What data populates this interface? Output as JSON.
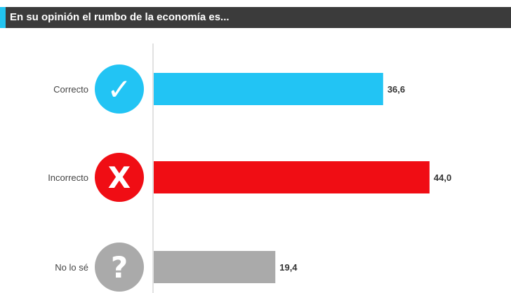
{
  "header": {
    "title": "En su opinión el rumbo de la economía es..."
  },
  "colors": {
    "header_bg": "#3b3b3b",
    "header_accent": "#22c4f0",
    "axis_line": "#d9d9d9"
  },
  "chart_data": {
    "type": "bar",
    "orientation": "horizontal",
    "title": "En su opinión el rumbo de la economía es...",
    "categories": [
      "Correcto",
      "Incorrecto",
      "No lo sé"
    ],
    "values": [
      36.6,
      44.0,
      19.4
    ],
    "value_labels": [
      "36,6",
      "44,0",
      "19,4"
    ],
    "colors": [
      "#22c4f4",
      "#f00d14",
      "#aaaaaa"
    ],
    "icons": [
      {
        "name": "check-icon",
        "glyph": "✓",
        "color": "#22c4f4"
      },
      {
        "name": "cross-icon",
        "glyph": "X",
        "color": "#f00d14"
      },
      {
        "name": "question-icon",
        "glyph": "?",
        "color": "#aaaaaa"
      }
    ],
    "xlim": [
      0,
      50
    ],
    "grid": false,
    "legend": "none"
  }
}
